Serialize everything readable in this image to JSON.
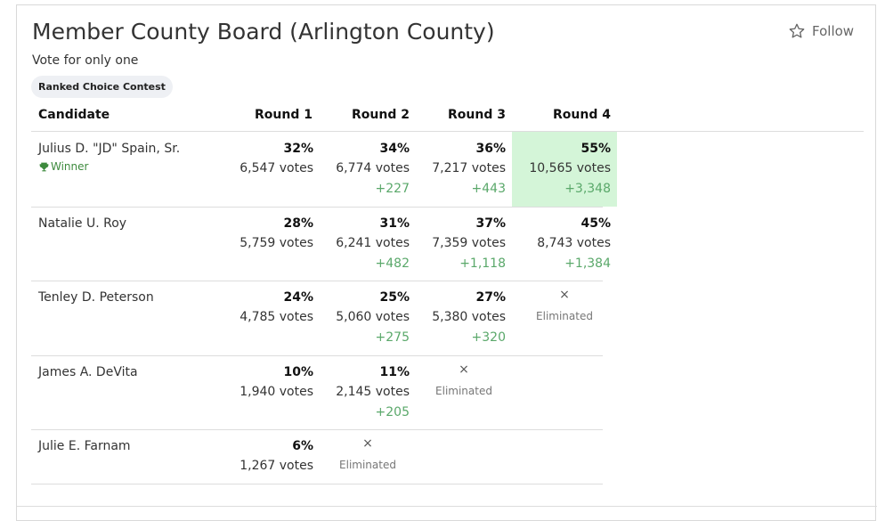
{
  "contest": {
    "title": "Member County Board (Arlington County)",
    "subtitle": "Vote for only one",
    "badge": "Ranked Choice Contest",
    "follow_label": "Follow"
  },
  "table": {
    "headers": [
      "Candidate",
      "Round 1",
      "Round 2",
      "Round 3",
      "Round 4"
    ],
    "winner_label": "Winner",
    "eliminated_label": "Eliminated",
    "eliminated_mark": "×",
    "rows": [
      {
        "name": "Julius D. \"JD\" Spain, Sr.",
        "winner": true,
        "rounds": [
          {
            "pct": "32%",
            "votes": "6,547 votes",
            "delta": ""
          },
          {
            "pct": "34%",
            "votes": "6,774 votes",
            "delta": "+227"
          },
          {
            "pct": "36%",
            "votes": "7,217 votes",
            "delta": "+443"
          },
          {
            "pct": "55%",
            "votes": "10,565 votes",
            "delta": "+3,348",
            "highlight": true
          }
        ]
      },
      {
        "name": "Natalie U. Roy",
        "winner": false,
        "rounds": [
          {
            "pct": "28%",
            "votes": "5,759 votes",
            "delta": ""
          },
          {
            "pct": "31%",
            "votes": "6,241 votes",
            "delta": "+482"
          },
          {
            "pct": "37%",
            "votes": "7,359 votes",
            "delta": "+1,118"
          },
          {
            "pct": "45%",
            "votes": "8,743 votes",
            "delta": "+1,384"
          }
        ]
      },
      {
        "name": "Tenley D. Peterson",
        "winner": false,
        "rounds": [
          {
            "pct": "24%",
            "votes": "4,785 votes",
            "delta": ""
          },
          {
            "pct": "25%",
            "votes": "5,060 votes",
            "delta": "+275"
          },
          {
            "pct": "27%",
            "votes": "5,380 votes",
            "delta": "+320"
          },
          {
            "eliminated": true
          }
        ]
      },
      {
        "name": "James A. DeVita",
        "winner": false,
        "rounds": [
          {
            "pct": "10%",
            "votes": "1,940 votes",
            "delta": ""
          },
          {
            "pct": "11%",
            "votes": "2,145 votes",
            "delta": "+205"
          },
          {
            "eliminated": true
          }
        ]
      },
      {
        "name": "Julie E. Farnam",
        "winner": false,
        "rounds": [
          {
            "pct": "6%",
            "votes": "1,267 votes",
            "delta": ""
          },
          {
            "eliminated": true
          }
        ]
      }
    ]
  },
  "colors": {
    "winner_highlight": "#d4f5d8",
    "delta_green": "#5aa86a",
    "winner_text": "#3d8a3d"
  },
  "icons": {
    "follow": "star-outline-icon",
    "winner": "trophy-icon"
  }
}
